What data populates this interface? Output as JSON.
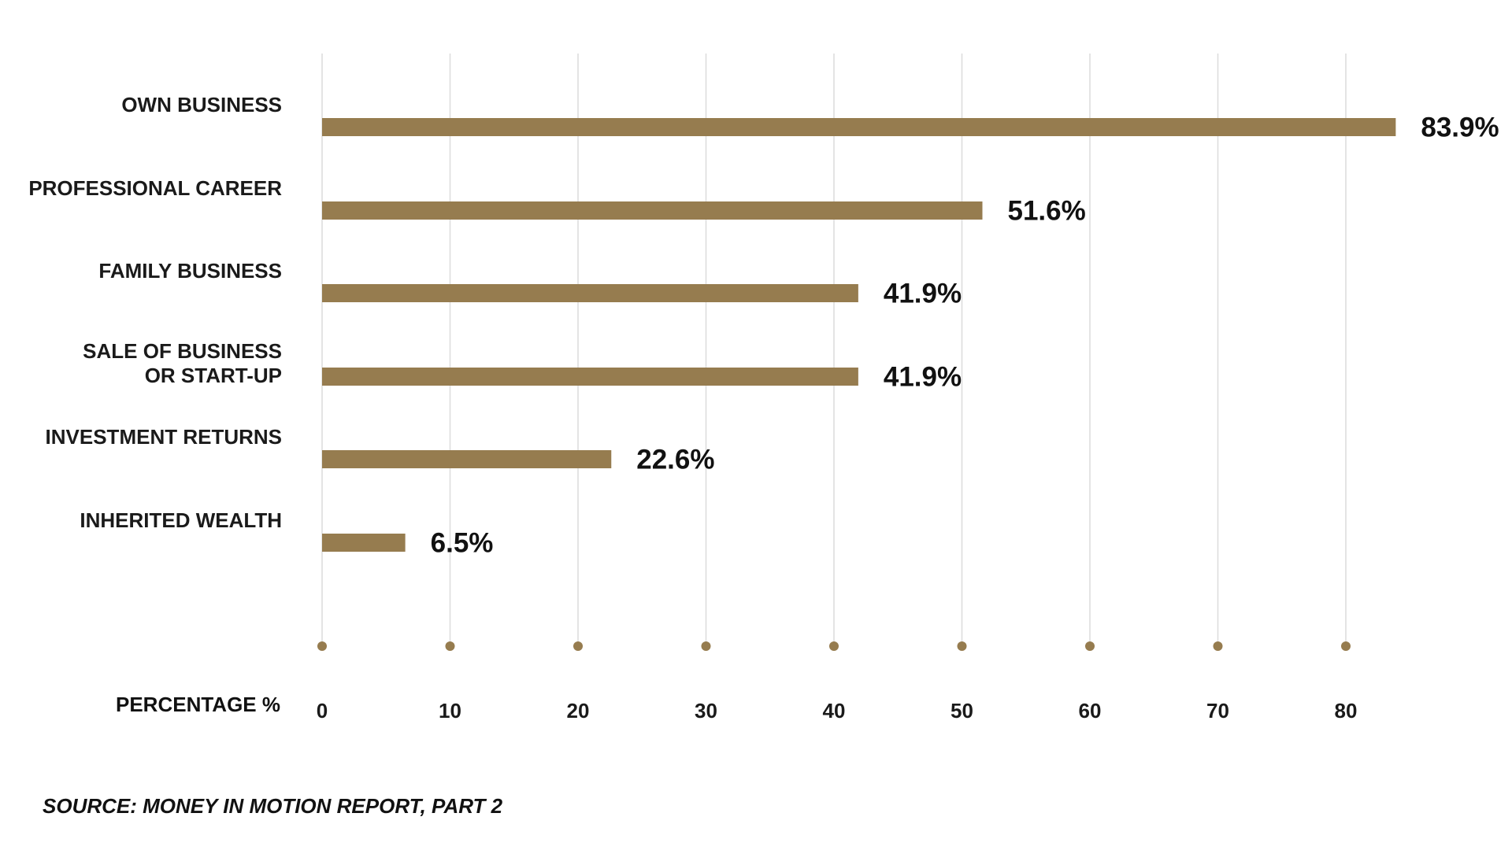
{
  "colors": {
    "bar": "#967c4f",
    "grid": "#dcdcdc",
    "tick_dot": "#967c4f",
    "text": "#111111"
  },
  "chart_data": {
    "type": "bar",
    "orientation": "horizontal",
    "categories": [
      [
        "OWN BUSINESS"
      ],
      [
        "PROFESSIONAL CAREER"
      ],
      [
        "FAMILY BUSINESS"
      ],
      [
        "SALE OF BUSINESS",
        "OR START-UP"
      ],
      [
        "INVESTMENT RETURNS"
      ],
      [
        "INHERITED WEALTH"
      ]
    ],
    "values": [
      83.9,
      51.6,
      41.9,
      41.9,
      22.6,
      6.5
    ],
    "value_labels": [
      "83.9%",
      "51.6%",
      "41.9%",
      "41.9%",
      "22.6%",
      "6.5%"
    ],
    "x_ticks": [
      0,
      10,
      20,
      30,
      40,
      50,
      60,
      70,
      80
    ],
    "x_tick_labels": [
      "0",
      "10",
      "20",
      "30",
      "40",
      "50",
      "60",
      "70",
      "80"
    ],
    "xlabel": "PERCENTAGE  %",
    "xlim": [
      0,
      80
    ],
    "grid": true,
    "legend": "none"
  },
  "source": "SOURCE: MONEY IN  MOTION REPORT, PART 2"
}
